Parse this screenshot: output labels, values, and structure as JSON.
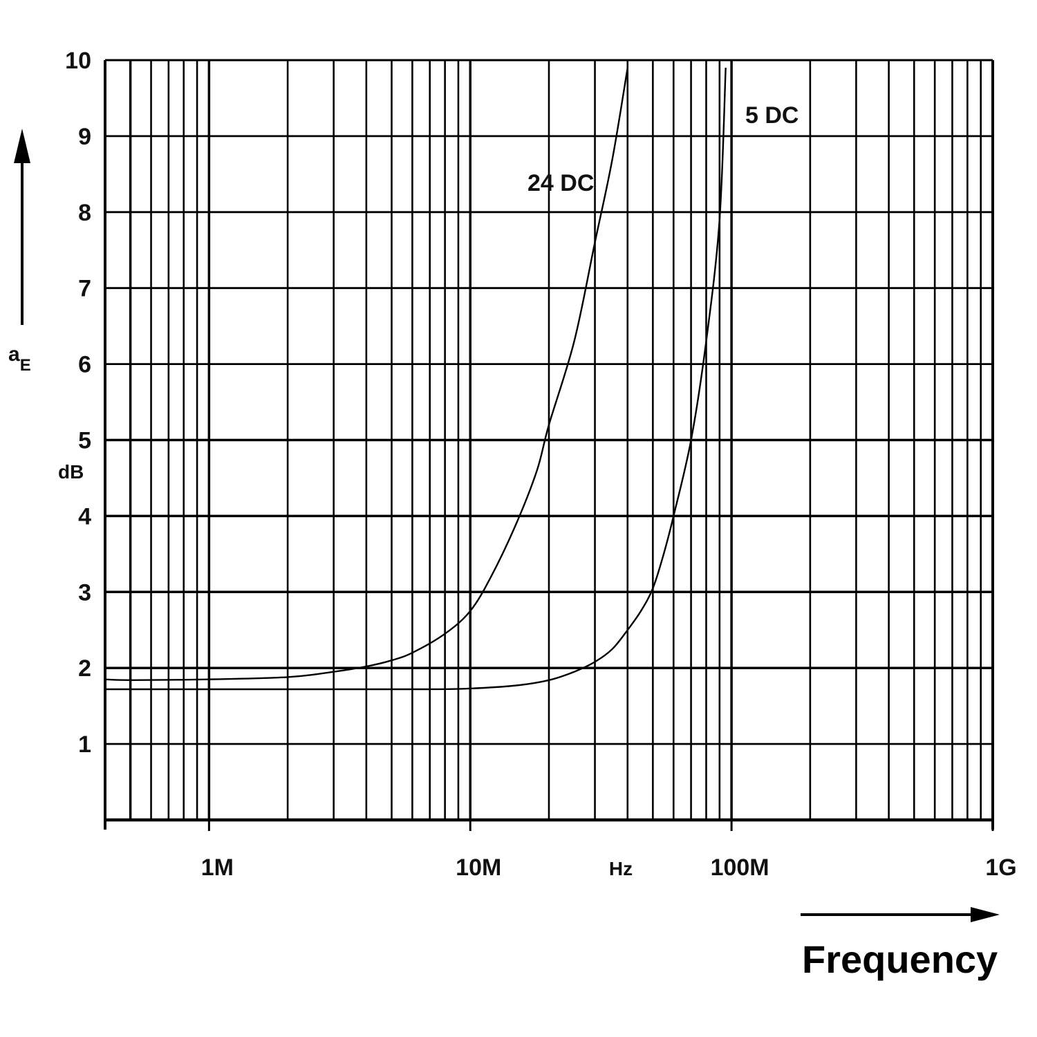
{
  "chart_data": {
    "type": "line",
    "x_scale": "log",
    "xlim": [
      400000,
      1000000000
    ],
    "ylim": [
      0,
      10
    ],
    "grid": true,
    "y_ticks": [
      {
        "value": 1,
        "label": "1"
      },
      {
        "value": 2,
        "label": "2"
      },
      {
        "value": 3,
        "label": "3"
      },
      {
        "value": 4,
        "label": "4"
      },
      {
        "value": 5,
        "label": "5"
      },
      {
        "value": 6,
        "label": "6"
      },
      {
        "value": 7,
        "label": "7"
      },
      {
        "value": 8,
        "label": "8"
      },
      {
        "value": 9,
        "label": "9"
      },
      {
        "value": 10,
        "label": "10"
      }
    ],
    "x_ticks": [
      {
        "value": 1000000,
        "label": "1M"
      },
      {
        "value": 10000000,
        "label": "10M"
      },
      {
        "value": 100000000,
        "label": "100M"
      },
      {
        "value": 1000000000,
        "label": "1G"
      }
    ],
    "x_unit": "Hz",
    "xlabel": "Frequency",
    "ylabel": "a",
    "ylabel_subscript": "E",
    "y_unit": "dB",
    "series": [
      {
        "name": "24 DC",
        "x": [
          400000,
          500000,
          1000000,
          2000000,
          3000000,
          4000000,
          5000000,
          6000000,
          8000000,
          10000000,
          12000000,
          15000000,
          18000000,
          20000000,
          25000000,
          30000000,
          35000000,
          40000000
        ],
        "y": [
          1.85,
          1.84,
          1.85,
          1.88,
          1.95,
          2.02,
          2.1,
          2.2,
          2.45,
          2.75,
          3.2,
          3.9,
          4.6,
          5.2,
          6.3,
          7.6,
          8.7,
          9.9
        ]
      },
      {
        "name": "5 DC",
        "x": [
          400000,
          1000000,
          3000000,
          7000000,
          10000000,
          15000000,
          20000000,
          25000000,
          30000000,
          35000000,
          40000000,
          45000000,
          50000000,
          55000000,
          60000000,
          70000000,
          80000000,
          90000000,
          95000000
        ],
        "y": [
          1.72,
          1.72,
          1.72,
          1.72,
          1.73,
          1.77,
          1.84,
          1.95,
          2.08,
          2.25,
          2.5,
          2.75,
          3.05,
          3.5,
          4.0,
          5.0,
          6.3,
          7.9,
          9.9
        ]
      }
    ]
  }
}
